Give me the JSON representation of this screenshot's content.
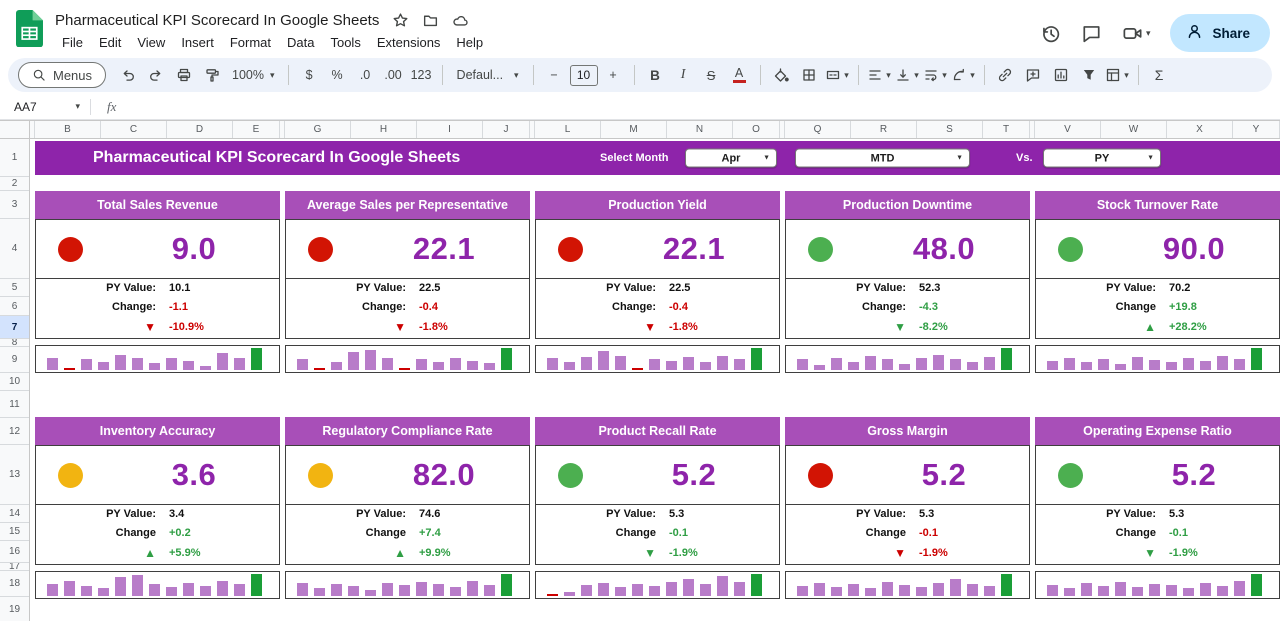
{
  "app": {
    "doc_title": "Pharmaceutical KPI Scorecard In Google Sheets",
    "menus": [
      "File",
      "Edit",
      "View",
      "Insert",
      "Format",
      "Data",
      "Tools",
      "Extensions",
      "Help"
    ],
    "share_label": "Share"
  },
  "toolbar": {
    "menus_label": "Menus",
    "zoom": "100%",
    "currency": "$",
    "percent": "%",
    "decrease_decimal": ".0",
    "increase_decimal": ".00",
    "number_format": "123",
    "font_value": "Defaul...",
    "minus": "−",
    "font_size": "10",
    "plus": "+",
    "bold": "B",
    "italic": "I",
    "strikethrough": "S",
    "text_color": "A",
    "functions": "Σ"
  },
  "formula_bar": {
    "cell_ref": "AA7",
    "fx_label": "fx"
  },
  "grid": {
    "columns": [
      "B",
      "C",
      "D",
      "E",
      "G",
      "H",
      "I",
      "J",
      "L",
      "M",
      "N",
      "O",
      "Q",
      "R",
      "S",
      "T",
      "V",
      "W",
      "X",
      "Y"
    ],
    "rows": [
      "1",
      "2",
      "3",
      "4",
      "5",
      "6",
      "7",
      "8",
      "9",
      "10",
      "11",
      "12",
      "13",
      "14",
      "15",
      "16",
      "17",
      "18",
      "19"
    ],
    "selected_row": "7"
  },
  "banner": {
    "title": "Pharmaceutical KPI Scorecard In Google Sheets",
    "select_month_label": "Select Month",
    "month_value": "Apr",
    "period_value": "MTD",
    "vs_label": "Vs.",
    "compare_value": "PY"
  },
  "colors": {
    "banner": "#8e24aa",
    "card_header": "#a84fb8",
    "value_text": "#8e24aa",
    "bar": "#b87cc9",
    "bar_last": "#1a9e37",
    "red": "#cc0000",
    "green": "#2f9e44",
    "status_red": "#d21404",
    "status_green": "#4caf50",
    "status_amber": "#f2b411",
    "share_bg": "#c2e7ff"
  },
  "cards": [
    {
      "title": "Total Sales Revenue",
      "status": "red",
      "value": "9.0",
      "py_label": "PY Value:",
      "py_value": "10.1",
      "change_label": "Change:",
      "change_value": "-1.1",
      "trend": "down",
      "trend_color": "red",
      "pct": "-10.9%",
      "bars": [
        0.55,
        0.06,
        0.5,
        0.35,
        0.7,
        0.55,
        0.3,
        0.55,
        0.4,
        0.18,
        0.75,
        0.55,
        1.0
      ]
    },
    {
      "title": "Average Sales per Representative",
      "status": "red",
      "value": "22.1",
      "py_label": "PY Value:",
      "py_value": "22.5",
      "change_label": "Change:",
      "change_value": "-0.4",
      "trend": "down",
      "trend_color": "red",
      "pct": "-1.8%",
      "bars": [
        0.5,
        0.08,
        0.35,
        0.8,
        0.9,
        0.55,
        0.1,
        0.5,
        0.35,
        0.55,
        0.4,
        0.3,
        1.0
      ]
    },
    {
      "title": "Production Yield",
      "status": "red",
      "value": "22.1",
      "py_label": "PY Value:",
      "py_value": "22.5",
      "change_label": "Change:",
      "change_value": "-0.4",
      "trend": "down",
      "trend_color": "red",
      "pct": "-1.8%",
      "bars": [
        0.55,
        0.35,
        0.6,
        0.85,
        0.65,
        0.08,
        0.5,
        0.4,
        0.6,
        0.35,
        0.65,
        0.5,
        1.0
      ]
    },
    {
      "title": "Production Downtime",
      "status": "green",
      "value": "48.0",
      "py_label": "PY Value:",
      "py_value": "52.3",
      "change_label": "Change:",
      "change_value": "-4.3",
      "trend": "down",
      "trend_color": "green",
      "pct": "-8.2%",
      "bars": [
        0.5,
        0.22,
        0.55,
        0.35,
        0.65,
        0.5,
        0.28,
        0.55,
        0.7,
        0.5,
        0.35,
        0.6,
        1.0
      ]
    },
    {
      "title": "Stock Turnover Rate",
      "status": "green",
      "value": "90.0",
      "py_label": "PY Value:",
      "py_value": "70.2",
      "change_label": "Change",
      "change_value": "+19.8",
      "trend": "up",
      "trend_color": "green",
      "pct": "+28.2%",
      "bars": [
        0.4,
        0.55,
        0.35,
        0.5,
        0.28,
        0.6,
        0.45,
        0.35,
        0.55,
        0.4,
        0.65,
        0.5,
        1.0
      ]
    },
    {
      "title": "Inventory Accuracy",
      "status": "amber",
      "value": "3.6",
      "py_label": "PY Value:",
      "py_value": "3.4",
      "change_label": "Change",
      "change_value": "+0.2",
      "trend": "up",
      "trend_color": "green",
      "pct": "+5.9%",
      "bars": [
        0.55,
        0.7,
        0.45,
        0.35,
        0.85,
        0.95,
        0.55,
        0.4,
        0.6,
        0.45,
        0.7,
        0.55,
        1.0
      ]
    },
    {
      "title": "Regulatory Compliance Rate",
      "status": "amber",
      "value": "82.0",
      "py_label": "PY Value:",
      "py_value": "74.6",
      "change_label": "Change",
      "change_value": "+7.4",
      "trend": "up",
      "trend_color": "green",
      "pct": "+9.9%",
      "bars": [
        0.6,
        0.35,
        0.55,
        0.45,
        0.28,
        0.6,
        0.5,
        0.65,
        0.55,
        0.4,
        0.7,
        0.5,
        1.0
      ]
    },
    {
      "title": "Product Recall Rate",
      "status": "green",
      "value": "5.2",
      "py_label": "PY Value:",
      "py_value": "5.3",
      "change_label": "Change",
      "change_value": "-0.1",
      "trend": "down",
      "trend_color": "green",
      "pct": "-1.9%",
      "bars": [
        0.08,
        0.2,
        0.5,
        0.6,
        0.4,
        0.55,
        0.45,
        0.65,
        0.75,
        0.55,
        0.9,
        0.65,
        1.0
      ]
    },
    {
      "title": "Gross Margin",
      "status": "red",
      "value": "5.2",
      "py_label": "PY Value:",
      "py_value": "5.3",
      "change_label": "Change",
      "change_value": "-0.1",
      "trend": "down",
      "trend_color": "red",
      "pct": "-1.9%",
      "bars": [
        0.45,
        0.6,
        0.4,
        0.55,
        0.35,
        0.65,
        0.5,
        0.4,
        0.6,
        0.75,
        0.55,
        0.45,
        1.0
      ]
    },
    {
      "title": "Operating Expense Ratio",
      "status": "green",
      "value": "5.2",
      "py_label": "PY Value:",
      "py_value": "5.3",
      "change_label": "Change",
      "change_value": "-0.1",
      "trend": "down",
      "trend_color": "green",
      "pct": "-1.9%",
      "bars": [
        0.5,
        0.35,
        0.6,
        0.45,
        0.65,
        0.4,
        0.55,
        0.5,
        0.35,
        0.6,
        0.45,
        0.7,
        1.0
      ]
    }
  ]
}
